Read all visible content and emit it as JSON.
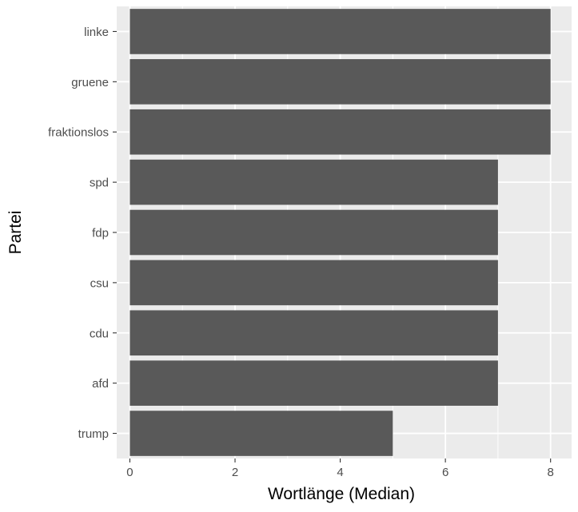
{
  "chart_data": {
    "type": "bar",
    "orientation": "horizontal",
    "categories": [
      "linke",
      "gruene",
      "fraktionslos",
      "spd",
      "fdp",
      "csu",
      "cdu",
      "afd",
      "trump"
    ],
    "values": [
      8,
      8,
      8,
      7,
      7,
      7,
      7,
      7,
      5
    ],
    "xlabel": "Wortlänge (Median)",
    "ylabel": "Partei",
    "xlim": [
      -0.25,
      8.4
    ],
    "xticks": [
      0,
      2,
      4,
      6,
      8
    ],
    "grid": true,
    "legend": "none",
    "colors": {
      "bar": "#595959",
      "panel": "#ebebeb",
      "grid": "#ffffff",
      "tick_text": "#4d4d4d",
      "axis_title": "#000000"
    }
  }
}
